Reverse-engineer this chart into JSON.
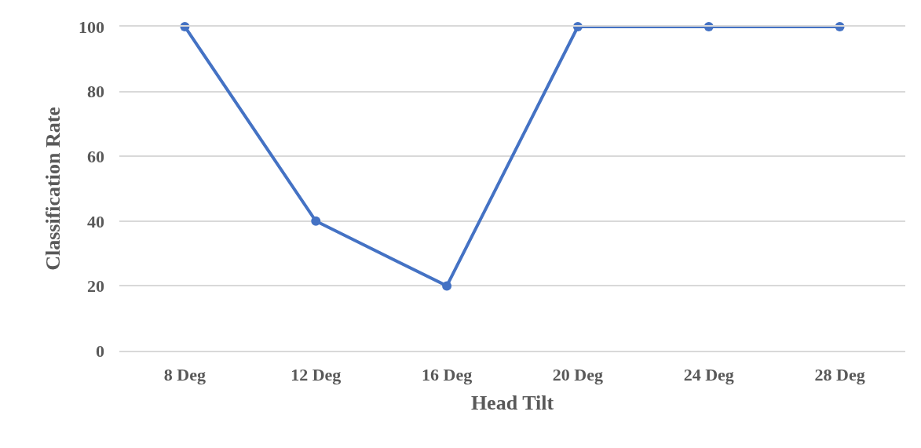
{
  "chart_data": {
    "type": "line",
    "xlabel": "Head Tilt",
    "ylabel": "Classification Rate",
    "categories": [
      "8 Deg",
      "12 Deg",
      "16 Deg",
      "20 Deg",
      "24 Deg",
      "28 Deg"
    ],
    "series": [
      {
        "color": "#4472c4",
        "values": [
          100,
          40,
          20,
          100,
          100,
          100
        ]
      }
    ],
    "ylim": [
      0,
      100
    ],
    "yticks": [
      0,
      20,
      40,
      60,
      80,
      100
    ],
    "grid": "y",
    "marker": "circle",
    "line_style": "solid"
  }
}
